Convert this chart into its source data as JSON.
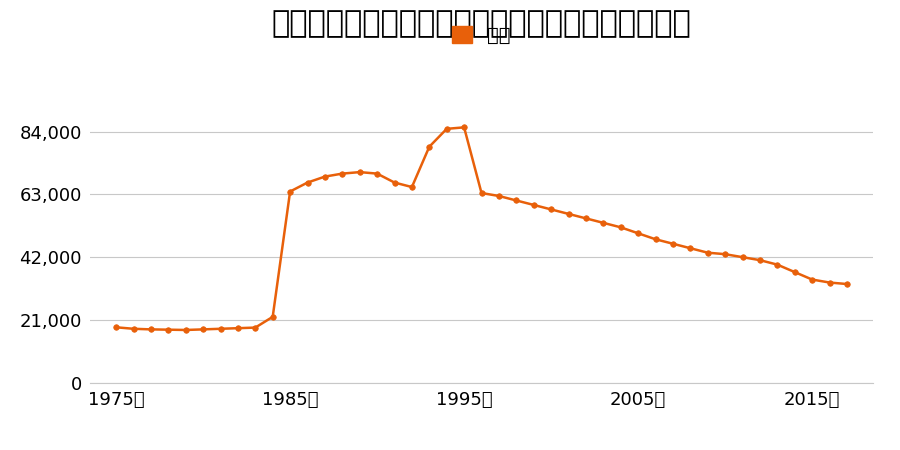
{
  "title": "北海道帯広市東６条南１４丁目１番１５の地価推移",
  "legend_label": "価格",
  "line_color": "#e8600a",
  "marker_color": "#e8600a",
  "background_color": "#ffffff",
  "grid_color": "#c8c8c8",
  "ylim": [
    0,
    95000
  ],
  "yticks": [
    0,
    21000,
    42000,
    63000,
    84000
  ],
  "ytick_labels": [
    "0",
    "21,000",
    "42,000",
    "63,000",
    "84,000"
  ],
  "xticks": [
    1975,
    1985,
    1995,
    2005,
    2015
  ],
  "xtick_labels": [
    "1975年",
    "1985年",
    "1995年",
    "2005年",
    "2015年"
  ],
  "years": [
    1975,
    1976,
    1977,
    1978,
    1979,
    1980,
    1981,
    1982,
    1983,
    1984,
    1985,
    1986,
    1987,
    1988,
    1989,
    1990,
    1991,
    1992,
    1993,
    1994,
    1995,
    1996,
    1997,
    1998,
    1999,
    2000,
    2001,
    2002,
    2003,
    2004,
    2005,
    2006,
    2007,
    2008,
    2009,
    2010,
    2011,
    2012,
    2013,
    2014,
    2015,
    2016,
    2017
  ],
  "values": [
    18500,
    18000,
    17800,
    17700,
    17600,
    17800,
    18000,
    18200,
    18400,
    22000,
    64000,
    67000,
    69000,
    70000,
    70500,
    70000,
    67000,
    65500,
    79000,
    85000,
    85500,
    63500,
    62500,
    61000,
    59500,
    58000,
    56500,
    55000,
    53500,
    52000,
    50000,
    48000,
    46500,
    45000,
    43500,
    43000,
    42000,
    41000,
    39500,
    37000,
    34500,
    33500,
    33000
  ],
  "title_fontsize": 22,
  "tick_fontsize": 13,
  "legend_fontsize": 14
}
